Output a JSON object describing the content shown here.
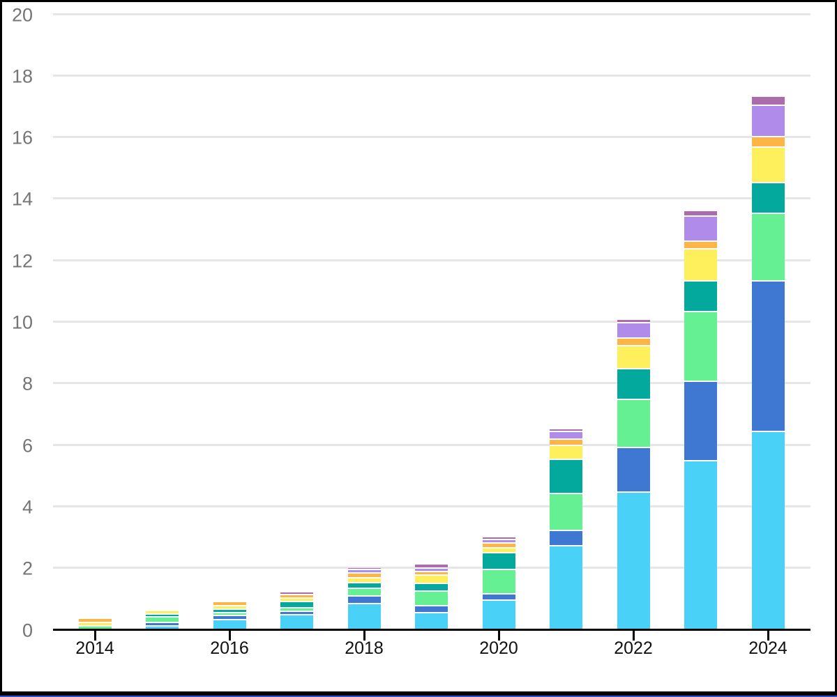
{
  "chart_data": {
    "type": "bar",
    "stacked": true,
    "title": "",
    "legend": "none",
    "grid": "horizontal",
    "categories": [
      2014,
      2015,
      2016,
      2017,
      2018,
      2019,
      2020,
      2021,
      2022,
      2023,
      2024
    ],
    "x_tick_labels": [
      "2014",
      "2016",
      "2018",
      "2020",
      "2022",
      "2024"
    ],
    "x_tick_years": [
      2014,
      2016,
      2018,
      2020,
      2022,
      2024
    ],
    "y_tick_labels": [
      "0",
      "2",
      "4",
      "6",
      "8",
      "10",
      "12",
      "14",
      "16",
      "18",
      "20"
    ],
    "y_ticks": [
      0,
      2,
      4,
      6,
      8,
      10,
      12,
      14,
      16,
      18,
      20
    ],
    "ylim": [
      0,
      20
    ],
    "series": [
      {
        "name": "cyan",
        "color": "#4AD1F7",
        "values": [
          0,
          0.1,
          0.3,
          0.45,
          0.81,
          0.52,
          0.92,
          2.7,
          4.45,
          5.45,
          6.4
        ]
      },
      {
        "name": "blue",
        "color": "#3E78D2",
        "values": [
          0,
          0.1,
          0.12,
          0.11,
          0.26,
          0.22,
          0.22,
          0.5,
          1.45,
          2.6,
          4.9
        ]
      },
      {
        "name": "green",
        "color": "#66F094",
        "values": [
          0.1,
          0.18,
          0.11,
          0.12,
          0.24,
          0.49,
          0.79,
          1.2,
          1.55,
          2.25,
          2.2
        ]
      },
      {
        "name": "teal",
        "color": "#02A99C",
        "values": [
          0,
          0.1,
          0.11,
          0.2,
          0.18,
          0.24,
          0.54,
          1.1,
          1.0,
          1.0,
          1.0
        ]
      },
      {
        "name": "yellow",
        "color": "#FEF05C",
        "values": [
          0.1,
          0.1,
          0.11,
          0.12,
          0.17,
          0.27,
          0.16,
          0.45,
          0.75,
          1.05,
          1.15
        ]
      },
      {
        "name": "orange",
        "color": "#FDB546",
        "values": [
          0.15,
          0,
          0.13,
          0.11,
          0.15,
          0.12,
          0.15,
          0.2,
          0.25,
          0.25,
          0.35
        ]
      },
      {
        "name": "purple",
        "color": "#B18BEA",
        "values": [
          0,
          0,
          0,
          0,
          0.11,
          0.11,
          0.12,
          0.25,
          0.5,
          0.8,
          1.0
        ]
      },
      {
        "name": "plum",
        "color": "#AC6BAC",
        "values": [
          0,
          0,
          0,
          0.09,
          0.08,
          0.13,
          0.1,
          0.1,
          0.1,
          0.2,
          0.3
        ]
      }
    ],
    "stack_totals": [
      0.35,
      0.58,
      0.88,
      1.2,
      2.0,
      2.1,
      3.0,
      6.5,
      10.05,
      13.6,
      17.3
    ]
  },
  "colors": {
    "background": "#ffffff",
    "gridline": "#e6e6e6",
    "axis_line": "#000000",
    "y_label_text": "#757575",
    "x_label_text": "#111111",
    "x_tick_mark": "#000000",
    "frame_border": "#000000",
    "bottom_accent": "#2a56c6",
    "segment_gap": "#ffffff"
  }
}
